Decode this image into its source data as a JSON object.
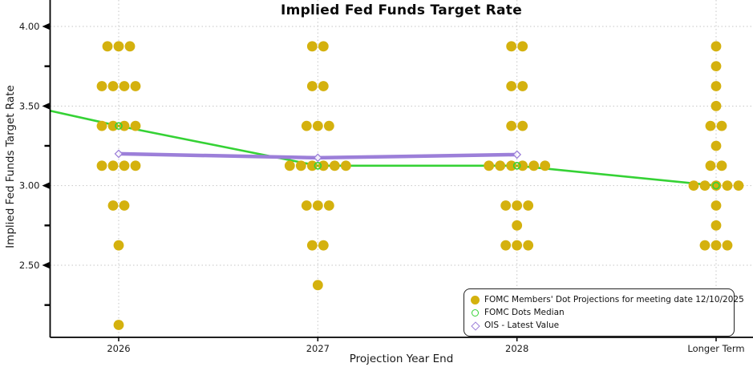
{
  "chart_data": {
    "type": "scatter",
    "title": "Implied Fed Funds Target Rate",
    "xlabel": "Projection Year End",
    "ylabel": "Implied Fed Funds Target Rate",
    "categories": [
      "2026",
      "2027",
      "2028",
      "Longer Term"
    ],
    "ytick_values": [
      4.0,
      3.5,
      3.0,
      2.5
    ],
    "ytick_labels": [
      "4.00",
      "3.50",
      "3.00",
      "2.50"
    ],
    "yminor_values": [
      3.75,
      3.25,
      2.75,
      2.25
    ],
    "ylim": [
      2.047,
      4.166
    ],
    "grid": true,
    "dot_projections": [
      {
        "category": "2026",
        "dots": [
          {
            "value": 3.875,
            "count": 3
          },
          {
            "value": 3.625,
            "count": 4
          },
          {
            "value": 3.375,
            "count": 4
          },
          {
            "value": 3.125,
            "count": 4
          },
          {
            "value": 2.875,
            "count": 2
          },
          {
            "value": 2.625,
            "count": 1
          },
          {
            "value": 2.125,
            "count": 1
          }
        ]
      },
      {
        "category": "2027",
        "dots": [
          {
            "value": 3.875,
            "count": 2
          },
          {
            "value": 3.625,
            "count": 2
          },
          {
            "value": 3.375,
            "count": 3
          },
          {
            "value": 3.125,
            "count": 6
          },
          {
            "value": 2.875,
            "count": 3
          },
          {
            "value": 2.625,
            "count": 2
          },
          {
            "value": 2.375,
            "count": 1
          }
        ]
      },
      {
        "category": "2028",
        "dots": [
          {
            "value": 3.875,
            "count": 2
          },
          {
            "value": 3.625,
            "count": 2
          },
          {
            "value": 3.375,
            "count": 2
          },
          {
            "value": 3.125,
            "count": 6
          },
          {
            "value": 2.875,
            "count": 3
          },
          {
            "value": 2.75,
            "count": 1
          },
          {
            "value": 2.625,
            "count": 3
          }
        ]
      },
      {
        "category": "Longer Term",
        "dots": [
          {
            "value": 3.875,
            "count": 1
          },
          {
            "value": 3.75,
            "count": 1
          },
          {
            "value": 3.625,
            "count": 1
          },
          {
            "value": 3.5,
            "count": 1
          },
          {
            "value": 3.375,
            "count": 2
          },
          {
            "value": 3.25,
            "count": 1
          },
          {
            "value": 3.125,
            "count": 2
          },
          {
            "value": 3.0,
            "count": 5
          },
          {
            "value": 2.875,
            "count": 1
          },
          {
            "value": 2.75,
            "count": 1
          },
          {
            "value": 2.625,
            "count": 3
          }
        ]
      }
    ],
    "series": [
      {
        "name": "FOMC Dots Median",
        "type": "line",
        "edge_start_value": 3.47,
        "categories": [
          "2026",
          "2027",
          "2028",
          "Longer Term"
        ],
        "values": [
          3.375,
          3.125,
          3.125,
          3.0
        ]
      },
      {
        "name": "OIS - Latest Value",
        "type": "line",
        "categories": [
          "2026",
          "2027",
          "2028"
        ],
        "values": [
          3.2,
          3.175,
          3.195
        ]
      }
    ],
    "legend": {
      "position": "bottom-right",
      "items": [
        {
          "marker": "filled-circle",
          "label": "FOMC Members' Dot Projections for meeting date 12/10/2025"
        },
        {
          "marker": "open-circle",
          "label": "FOMC Dots Median"
        },
        {
          "marker": "open-diamond",
          "label": "OIS - Latest Value"
        }
      ]
    },
    "colors": {
      "dots": "#d4b10e",
      "median": "#35d235",
      "ois": "#9c7fd9",
      "grid": "#c6c6c6",
      "axis": "#000000",
      "background": "#ffffff",
      "text": "#1a1a1a"
    }
  }
}
